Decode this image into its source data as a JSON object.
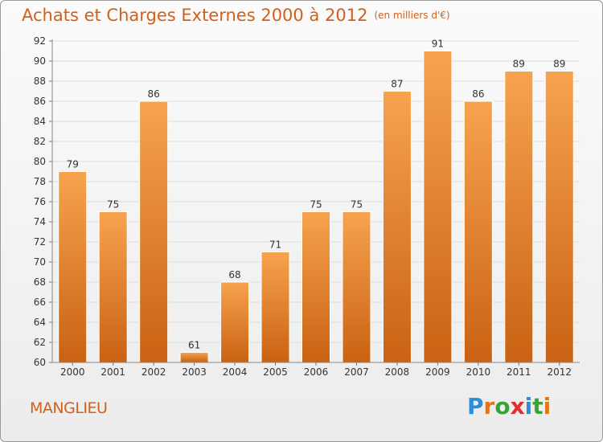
{
  "title": "Achats et Charges Externes 2000 à 2012",
  "subtitle": "(en milliers d'€)",
  "location_label": "MANGLIEU",
  "brand": {
    "letters": [
      "P",
      "r",
      "o",
      "x",
      "i",
      "t",
      "i"
    ],
    "colors": [
      "#2a8fd6",
      "#e0751d",
      "#3aa336",
      "#e02d2d",
      "#2a8fd6",
      "#3aa336",
      "#e0751d"
    ]
  },
  "colors": {
    "title": "#d2601a",
    "bar_top": "#f7a34e",
    "bar_bottom": "#c96212",
    "bar_edge": "#ffffff"
  },
  "chart_data": {
    "type": "bar",
    "categories": [
      "2000",
      "2001",
      "2002",
      "2003",
      "2004",
      "2005",
      "2006",
      "2007",
      "2008",
      "2009",
      "2010",
      "2011",
      "2012"
    ],
    "values": [
      79,
      75,
      86,
      61,
      68,
      71,
      75,
      75,
      87,
      91,
      86,
      89,
      89
    ],
    "data_labels": [
      "79",
      "75",
      "86",
      "61",
      "68",
      "71",
      "75",
      "75",
      "87",
      "91",
      "86",
      "89",
      "89"
    ],
    "y_ticks": [
      "60",
      "62",
      "64",
      "66",
      "68",
      "70",
      "72",
      "74",
      "76",
      "78",
      "80",
      "82",
      "84",
      "86",
      "88",
      "90",
      "92"
    ],
    "ylim": [
      60,
      92
    ],
    "grid": true,
    "legend": "none"
  }
}
